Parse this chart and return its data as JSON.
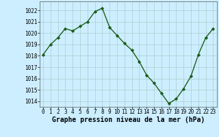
{
  "x": [
    0,
    1,
    2,
    3,
    4,
    5,
    6,
    7,
    8,
    9,
    10,
    11,
    12,
    13,
    14,
    15,
    16,
    17,
    18,
    19,
    20,
    21,
    22,
    23
  ],
  "y": [
    1018.1,
    1019.0,
    1019.6,
    1020.4,
    1020.2,
    1020.6,
    1021.0,
    1021.9,
    1022.2,
    1020.5,
    1019.8,
    1019.1,
    1018.5,
    1017.5,
    1016.3,
    1015.6,
    1014.7,
    1013.8,
    1014.2,
    1015.1,
    1016.2,
    1018.1,
    1019.6,
    1020.4
  ],
  "line_color": "#1a5c1a",
  "marker": "D",
  "marker_size": 2.2,
  "background_color": "#cceeff",
  "grid_color": "#aacccc",
  "xlabel": "Graphe pression niveau de la mer (hPa)",
  "xlabel_fontsize": 7.0,
  "ylim": [
    1013.5,
    1022.8
  ],
  "yticks": [
    1014,
    1015,
    1016,
    1017,
    1018,
    1019,
    1020,
    1021,
    1022
  ],
  "xticks": [
    0,
    1,
    2,
    3,
    4,
    5,
    6,
    7,
    8,
    9,
    10,
    11,
    12,
    13,
    14,
    15,
    16,
    17,
    18,
    19,
    20,
    21,
    22,
    23
  ],
  "tick_fontsize": 5.5,
  "line_width": 1.0
}
